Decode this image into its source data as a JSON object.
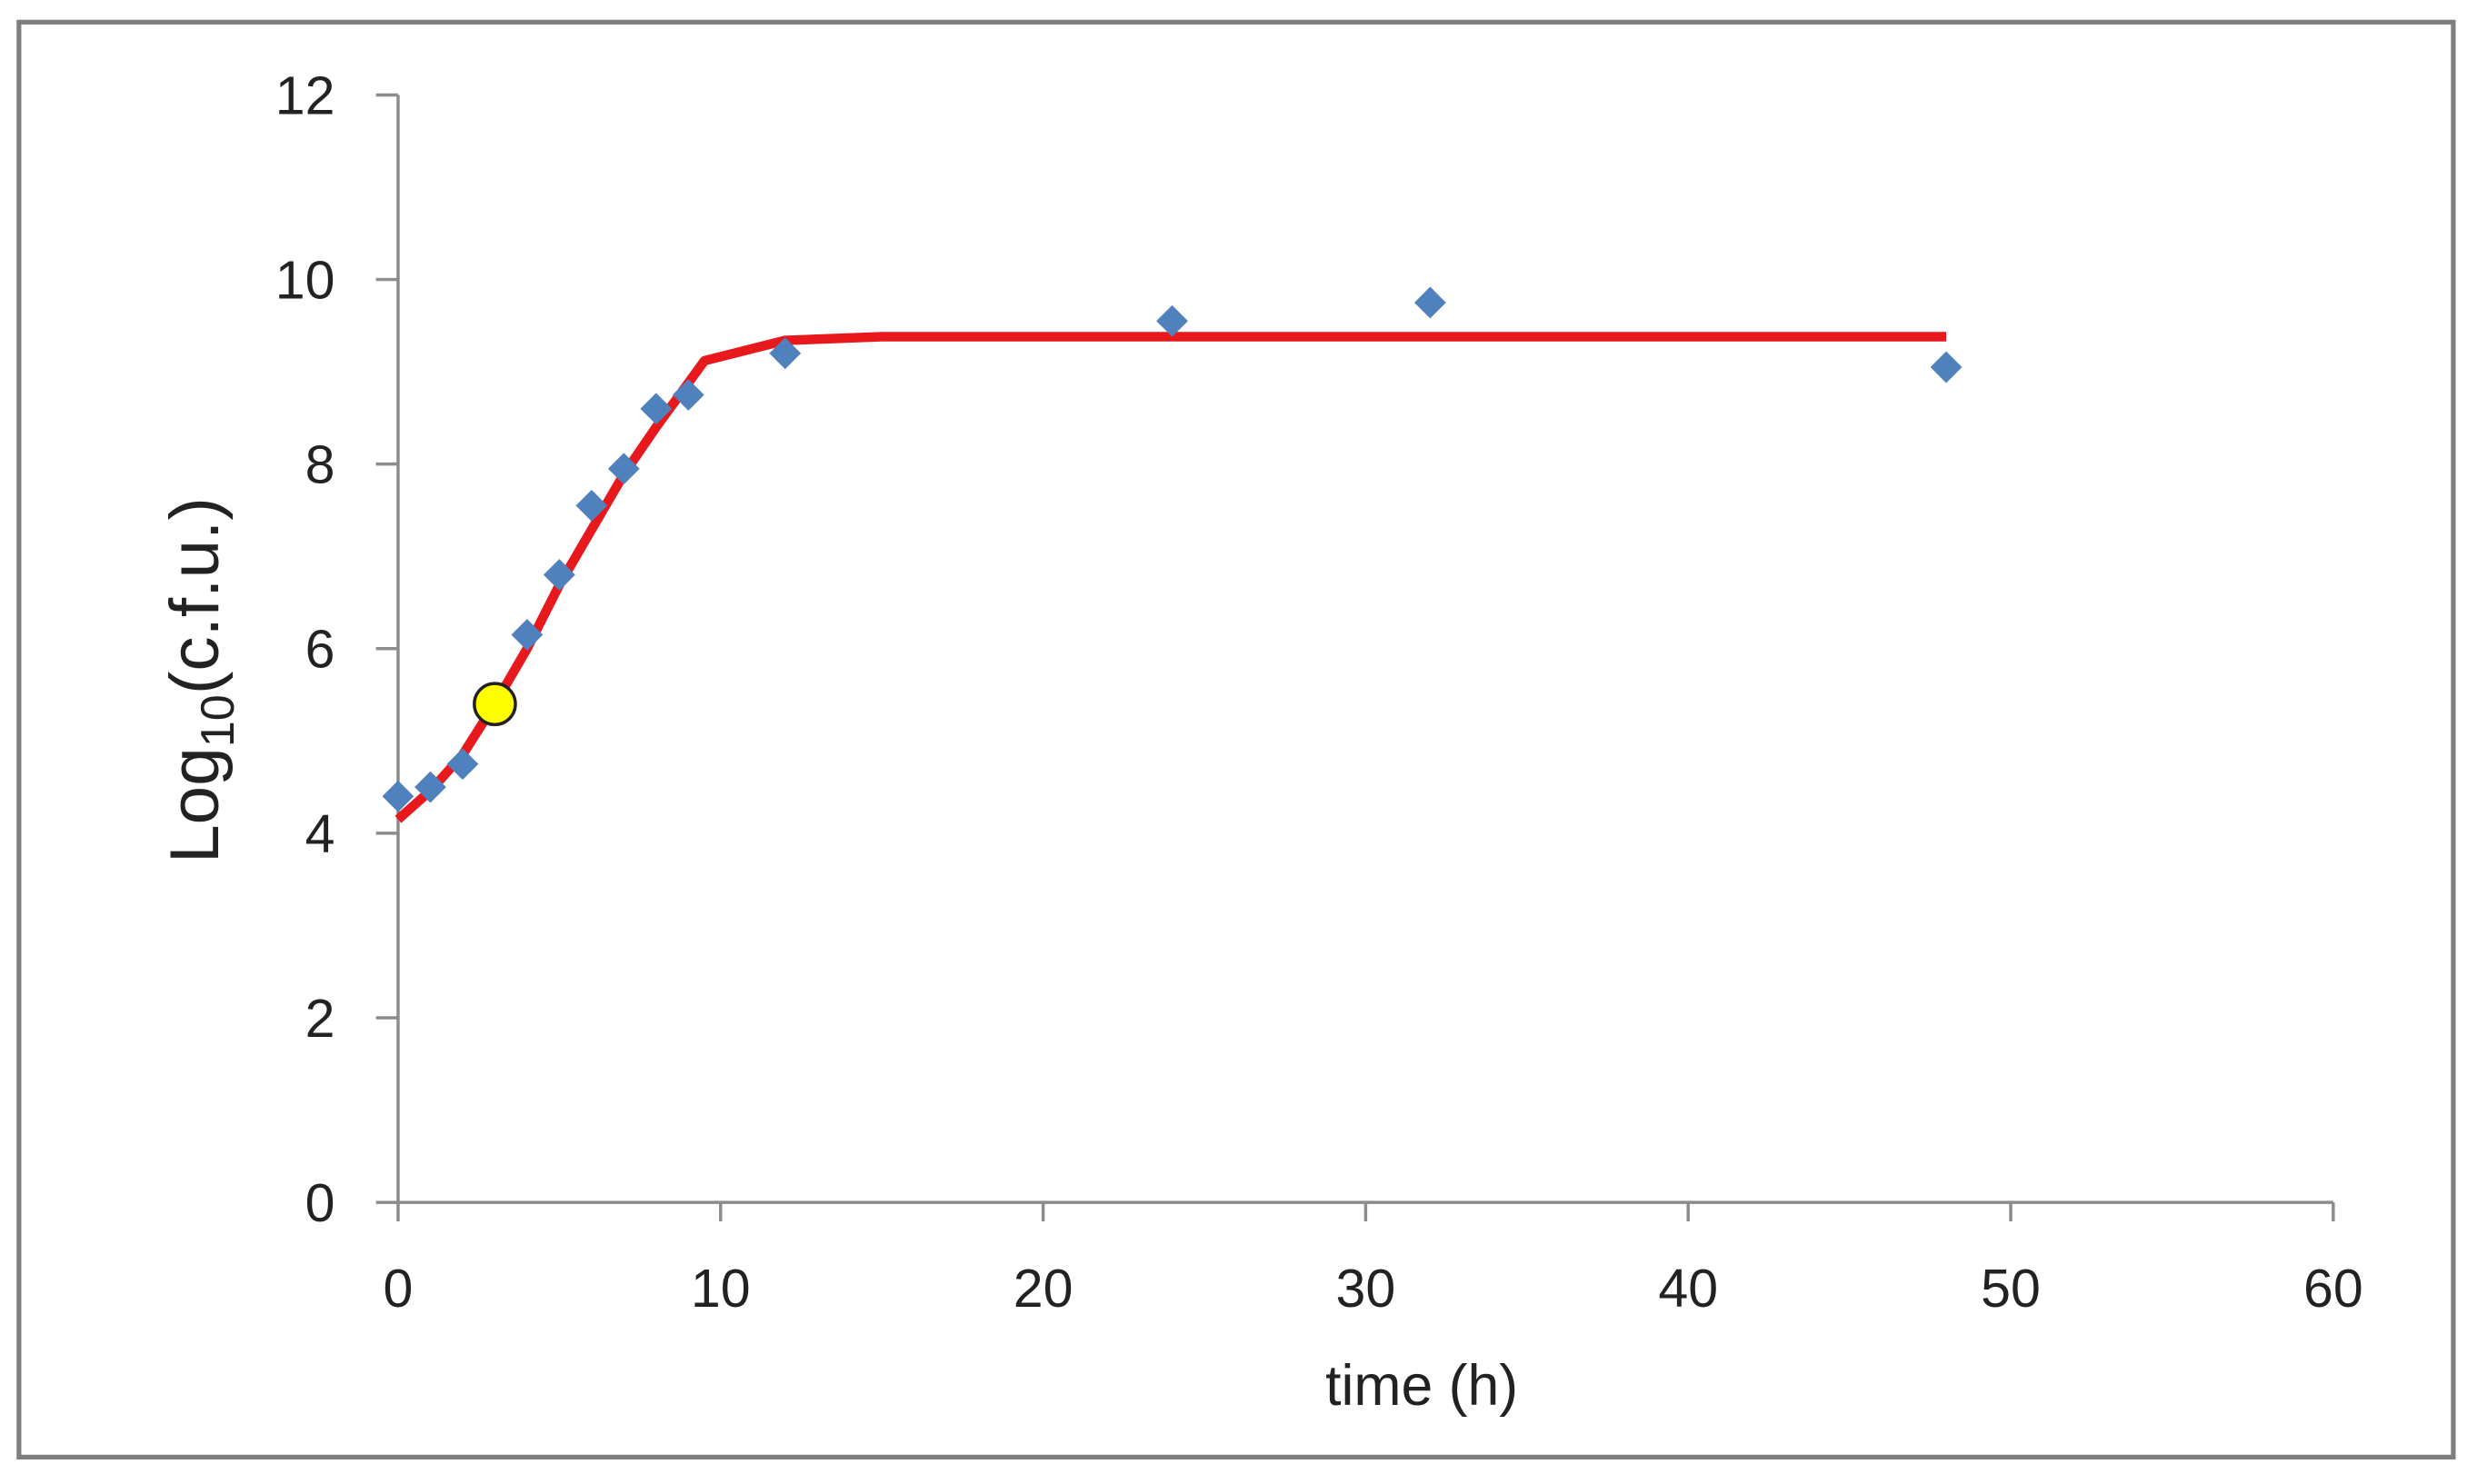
{
  "chart_data": {
    "type": "scatter",
    "x_label": "time  (h)",
    "y_label_parts": [
      "Log",
      "10",
      "(c.f.u.)"
    ],
    "xlim": [
      0,
      60
    ],
    "xticks": [
      0,
      10,
      20,
      30,
      40,
      50,
      60
    ],
    "ylim": [
      0,
      12
    ],
    "yticks": [
      0,
      2,
      4,
      6,
      8,
      10,
      12
    ],
    "grid": false,
    "series": [
      {
        "marker": "line",
        "color": "#e8191c",
        "x": [
          0,
          1,
          2,
          3,
          4,
          5,
          6,
          7,
          8,
          9.5,
          12,
          15,
          48
        ],
        "values": [
          4.15,
          4.46,
          4.85,
          5.4,
          6.0,
          6.69,
          7.29,
          7.89,
          8.4,
          9.12,
          9.34,
          9.38,
          9.38
        ]
      },
      {
        "marker": "diamond",
        "color": "#4f81bd",
        "x": [
          0,
          1,
          2,
          4,
          5,
          6,
          7,
          8,
          9,
          12,
          24,
          32,
          48
        ],
        "values": [
          4.4,
          4.5,
          4.75,
          6.15,
          6.8,
          7.55,
          7.95,
          8.6,
          8.75,
          9.2,
          9.55,
          9.75,
          9.05
        ]
      },
      {
        "marker": "circle",
        "color": "#ffff00",
        "x": [
          3
        ],
        "values": [
          5.4
        ]
      }
    ]
  }
}
